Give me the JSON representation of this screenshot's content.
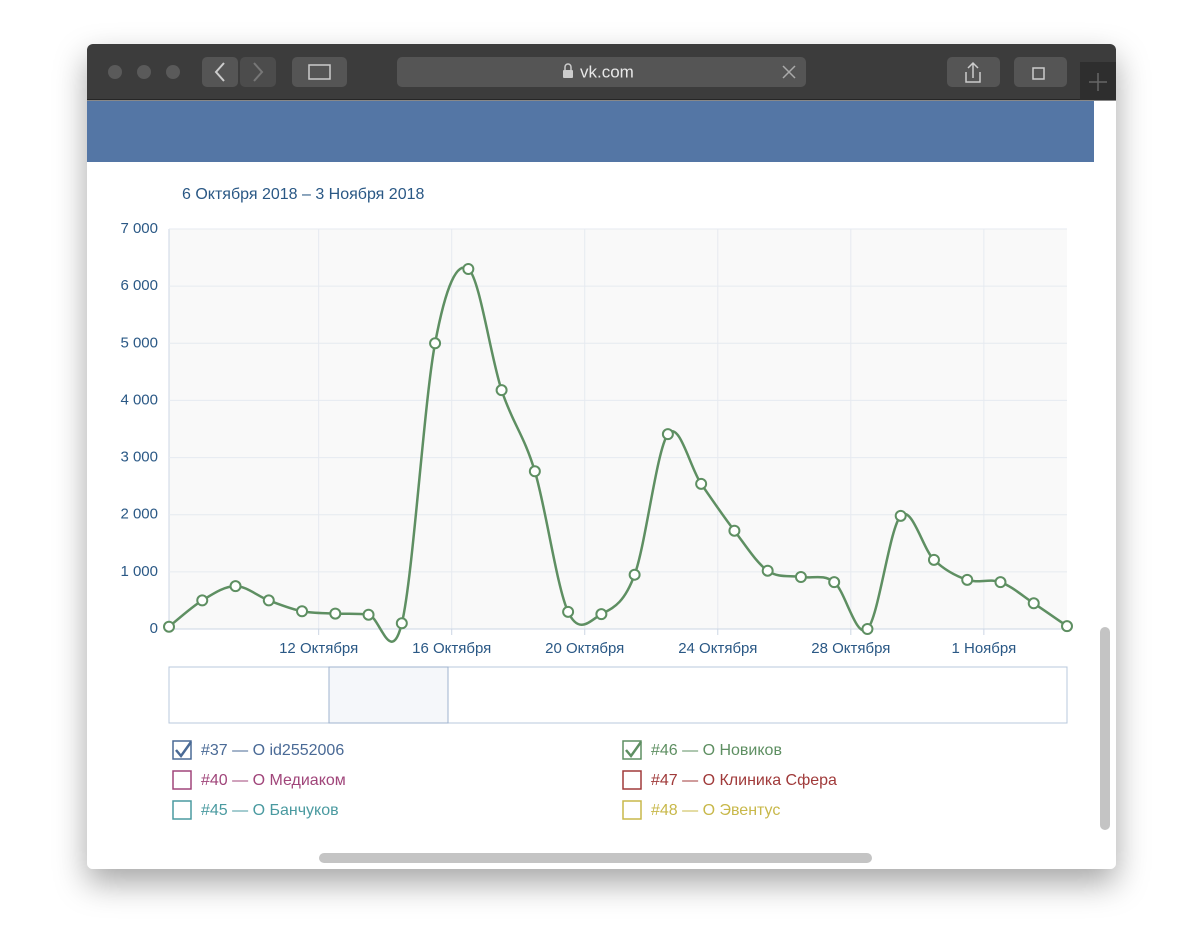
{
  "browser": {
    "url": "vk.com"
  },
  "chart_data": {
    "type": "line",
    "subtitle": "6 Октября 2018 – 3 Ноября 2018",
    "x": [
      "2018-10-07",
      "2018-10-08",
      "2018-10-09",
      "2018-10-10",
      "2018-10-11",
      "2018-10-12",
      "2018-10-13",
      "2018-10-14",
      "2018-10-15",
      "2018-10-16",
      "2018-10-17",
      "2018-10-18",
      "2018-10-19",
      "2018-10-20",
      "2018-10-21",
      "2018-10-22",
      "2018-10-23",
      "2018-10-24",
      "2018-10-25",
      "2018-10-26",
      "2018-10-27",
      "2018-10-28",
      "2018-10-29",
      "2018-10-30",
      "2018-10-31",
      "2018-11-01",
      "2018-11-02",
      "2018-11-03"
    ],
    "series": [
      {
        "name": "#37 — О id2552006",
        "color": "#4a6a96",
        "checked": true
      },
      {
        "name": "#46 — О Новиков",
        "color": "#5e8f62",
        "checked": true,
        "values": [
          40,
          500,
          750,
          500,
          310,
          270,
          250,
          100,
          5000,
          6300,
          4180,
          2760,
          300,
          260,
          950,
          3410,
          2540,
          1720,
          1020,
          910,
          820,
          0,
          1980,
          1210,
          860,
          820,
          450,
          50
        ]
      },
      {
        "name": "#40 — О Медиаком",
        "color": "#a0457a",
        "checked": false
      },
      {
        "name": "#47 — О Клиника Сфера",
        "color": "#a03a3a",
        "checked": false
      },
      {
        "name": "#45 — О Банчуков",
        "color": "#4a9aa0",
        "checked": false
      },
      {
        "name": "#48 — О Эвентус",
        "color": "#c8b84a",
        "checked": false
      }
    ],
    "xlim": [
      "2018-10-07T12:00",
      "2018-11-03T12:00"
    ],
    "xticks": [
      {
        "value": "2018-10-12",
        "label": "12 Октября"
      },
      {
        "value": "2018-10-16",
        "label": "16 Октября"
      },
      {
        "value": "2018-10-20",
        "label": "20 Октября"
      },
      {
        "value": "2018-10-24",
        "label": "24 Октября"
      },
      {
        "value": "2018-10-28",
        "label": "28 Октября"
      },
      {
        "value": "2018-11-01",
        "label": "1 Ноября"
      }
    ],
    "ylim": [
      0,
      7000
    ],
    "yticks": [
      0,
      {
        "value": 1000,
        "label": "1 000"
      },
      {
        "value": 2000,
        "label": "2 000"
      },
      {
        "value": 3000,
        "label": "3 000"
      },
      {
        "value": 4000,
        "label": "4 000"
      },
      {
        "value": 5000,
        "label": "5 000"
      },
      {
        "value": 6000,
        "label": "6 000"
      },
      {
        "value": 7000,
        "label": "7 000"
      }
    ],
    "grid": true
  }
}
